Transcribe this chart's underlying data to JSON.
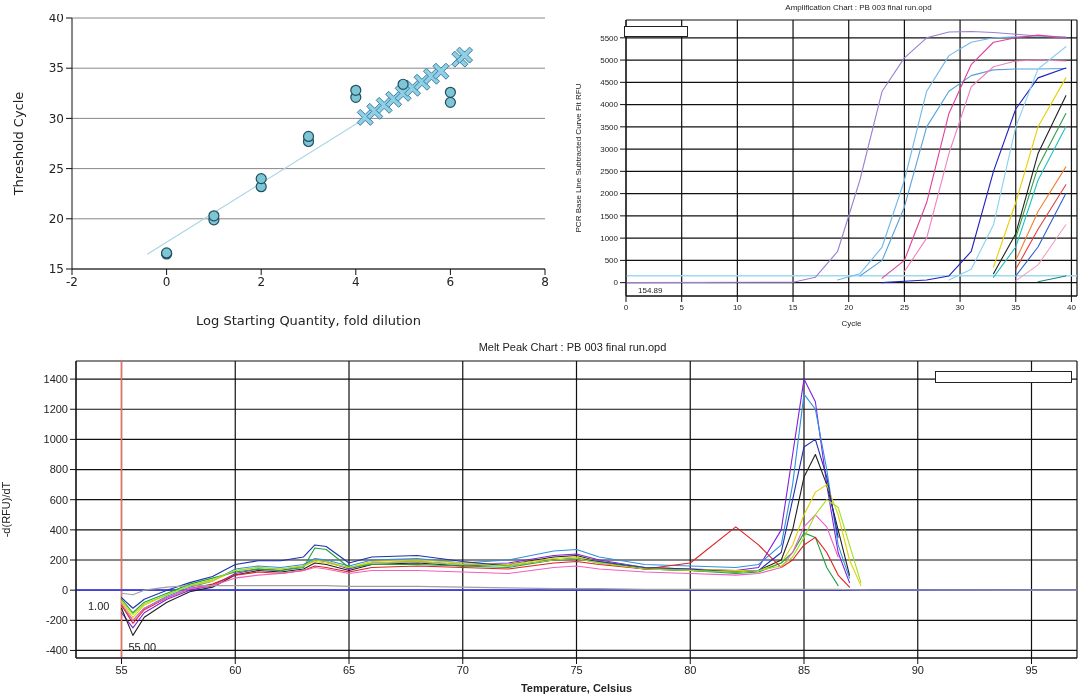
{
  "chart_data": [
    {
      "type": "scatter",
      "xlabel": "Log Starting Quantity, fold dilution",
      "ylabel": "Threshold Cycle",
      "xlim": [
        -2,
        8
      ],
      "xticks": [
        -2,
        0,
        2,
        4,
        6,
        8
      ],
      "ylim": [
        15,
        40
      ],
      "yticks": [
        15,
        20,
        25,
        30,
        35,
        40
      ],
      "grid": "y",
      "series": [
        {
          "type": "line",
          "color": "#a8d4e4",
          "x": [
            -0.4,
            6.3
          ],
          "values": [
            16.5,
            36.2
          ],
          "marker": "none"
        },
        {
          "color": "#8fd0e6",
          "marker": "cross",
          "x": [
            4.2,
            4.4,
            4.6,
            4.8,
            5.0,
            5.2,
            5.4,
            5.6,
            5.8,
            6.2,
            6.3
          ],
          "values": [
            30.1,
            30.7,
            31.3,
            31.9,
            32.5,
            33.0,
            33.6,
            34.2,
            34.7,
            35.9,
            36.3
          ]
        },
        {
          "color": "#7ec6d6",
          "marker": "circle",
          "x": [
            0,
            0,
            1,
            1,
            2,
            2,
            3,
            3,
            4,
            4,
            5,
            6,
            6
          ],
          "values": [
            16.5,
            16.6,
            19.9,
            20.3,
            23.2,
            24.0,
            27.7,
            28.2,
            32.1,
            32.8,
            33.4,
            31.6,
            32.6
          ]
        }
      ]
    },
    {
      "type": "line",
      "title": "Amplification Chart : PB 003 final run.opd",
      "xlabel": "Cycle",
      "ylabel": "PCR Base Line Subtracted Curve Fit RFU",
      "xlim": [
        0,
        40.5
      ],
      "xticks": [
        0,
        5,
        10,
        15,
        20,
        25,
        30,
        35,
        40
      ],
      "ylim": [
        -300,
        5900
      ],
      "yticks": [
        0,
        500,
        1000,
        1500,
        2000,
        2500,
        3000,
        3500,
        4000,
        4500,
        5000,
        5500
      ],
      "grid": true,
      "line_style": "solid",
      "x": [
        0,
        15,
        17,
        19,
        21,
        23,
        25,
        27,
        29,
        31,
        33,
        35,
        37,
        39.5
      ],
      "ref_lines": [
        {
          "axis": "y",
          "value": 154.89,
          "label": "154.89",
          "color": "#a0d8f0"
        }
      ],
      "series": [
        {
          "color": "#9b7fd0",
          "values": [
            0,
            10,
            120,
            700,
            2300,
            4300,
            5050,
            5500,
            5630,
            5640,
            5620,
            5580,
            5540,
            5500
          ]
        },
        {
          "color": "#70b8e8",
          "values": [
            null,
            null,
            null,
            60,
            200,
            800,
            2300,
            4300,
            5100,
            5400,
            5500,
            5520,
            5540,
            5520
          ]
        },
        {
          "color": "#5aa0d8",
          "values": [
            null,
            null,
            null,
            null,
            150,
            500,
            1700,
            3500,
            4300,
            4650,
            4780,
            4800,
            4800,
            4810
          ]
        },
        {
          "color": "#e0409a",
          "values": [
            null,
            null,
            null,
            null,
            null,
            100,
            500,
            1800,
            3800,
            4900,
            5400,
            5500,
            5560,
            5500
          ]
        },
        {
          "color": "#f080c0",
          "values": [
            null,
            null,
            null,
            null,
            null,
            null,
            250,
            1000,
            2900,
            4400,
            4850,
            4980,
            5000,
            4980
          ]
        },
        {
          "color": "#2020c0",
          "values": [
            null,
            null,
            null,
            null,
            null,
            0,
            30,
            60,
            150,
            700,
            2500,
            3900,
            4600,
            4820
          ]
        },
        {
          "color": "#8ad0f0",
          "values": [
            null,
            null,
            null,
            null,
            null,
            null,
            null,
            null,
            60,
            300,
            1300,
            3500,
            4800,
            5300
          ]
        },
        {
          "color": "#e8d000",
          "values": [
            null,
            null,
            null,
            null,
            null,
            null,
            null,
            null,
            null,
            null,
            350,
            1800,
            3500,
            4600
          ]
        },
        {
          "color": "#202020",
          "values": [
            null,
            null,
            null,
            null,
            null,
            null,
            null,
            null,
            null,
            null,
            200,
            1100,
            2900,
            4200
          ]
        },
        {
          "color": "#30a040",
          "values": [
            null,
            null,
            null,
            null,
            null,
            null,
            null,
            null,
            null,
            null,
            null,
            1000,
            2600,
            3800
          ]
        },
        {
          "color": "#20c0c0",
          "values": [
            null,
            null,
            null,
            null,
            null,
            null,
            null,
            null,
            null,
            null,
            120,
            800,
            2300,
            3500
          ]
        },
        {
          "color": "#f08030",
          "values": [
            null,
            null,
            null,
            null,
            null,
            null,
            null,
            null,
            null,
            null,
            null,
            500,
            1600,
            2600
          ]
        },
        {
          "color": "#e04040",
          "values": [
            null,
            null,
            null,
            null,
            null,
            null,
            null,
            null,
            null,
            null,
            null,
            300,
            1200,
            2200
          ]
        },
        {
          "color": "#3060d0",
          "values": [
            null,
            null,
            null,
            null,
            null,
            null,
            null,
            null,
            null,
            null,
            null,
            150,
            800,
            2000
          ]
        },
        {
          "color": "#f0a0c0",
          "values": [
            null,
            null,
            null,
            null,
            null,
            null,
            null,
            null,
            null,
            null,
            null,
            40,
            400,
            1300
          ]
        },
        {
          "color": "#208080",
          "values": [
            null,
            null,
            null,
            null,
            null,
            null,
            null,
            null,
            null,
            null,
            null,
            null,
            20,
            150
          ]
        }
      ]
    },
    {
      "type": "line",
      "title": "Melt Peak Chart : PB 003 final run.opd",
      "xlabel": "Temperature, Celsius",
      "ylabel": "-d(RFU)/dT",
      "xlim": [
        53,
        97
      ],
      "xticks": [
        55,
        60,
        65,
        70,
        75,
        80,
        85,
        90,
        95
      ],
      "ylim": [
        -450,
        1520
      ],
      "yticks": [
        -400,
        -200,
        0,
        200,
        400,
        600,
        800,
        1000,
        1200,
        1400
      ],
      "grid": true,
      "line_style": "solid",
      "x": [
        55,
        55.5,
        56,
        57,
        58,
        59,
        60,
        61,
        62,
        63,
        63.5,
        64,
        65,
        66,
        68,
        70,
        72,
        74,
        75,
        76,
        78,
        80,
        82,
        83,
        84,
        84.5,
        85,
        85.5,
        86,
        86.5,
        87,
        87.5,
        88,
        90,
        95,
        97
      ],
      "ref_lines": [
        {
          "axis": "x",
          "value": 55,
          "label": "55.00",
          "color": "#f07060"
        },
        {
          "axis": "y",
          "value": 1,
          "label": "1.00",
          "color": "#4040ff"
        }
      ],
      "series": [
        {
          "color": "#8020e0",
          "values": [
            -150,
            -250,
            -150,
            -60,
            0,
            30,
            110,
            140,
            130,
            160,
            200,
            190,
            140,
            180,
            190,
            170,
            180,
            230,
            240,
            200,
            150,
            140,
            130,
            150,
            400,
            900,
            1400,
            1250,
            700,
            250,
            50,
            null,
            null,
            null,
            null,
            null
          ]
        },
        {
          "color": "#3090e0",
          "values": [
            -100,
            -200,
            -120,
            -40,
            20,
            60,
            140,
            160,
            150,
            170,
            210,
            200,
            160,
            200,
            210,
            180,
            200,
            260,
            270,
            220,
            170,
            160,
            150,
            170,
            300,
            700,
            1300,
            1200,
            800,
            300,
            80,
            null,
            null,
            null,
            null,
            null
          ]
        },
        {
          "color": "#202020",
          "values": [
            -120,
            -300,
            -180,
            -80,
            -10,
            20,
            100,
            130,
            120,
            140,
            180,
            170,
            130,
            170,
            180,
            160,
            170,
            220,
            230,
            190,
            140,
            130,
            120,
            130,
            200,
            400,
            750,
            900,
            700,
            400,
            100,
            null,
            null,
            null,
            null,
            null
          ]
        },
        {
          "color": "#e0d000",
          "values": [
            -80,
            -180,
            -100,
            -30,
            30,
            60,
            130,
            150,
            140,
            160,
            190,
            180,
            150,
            190,
            200,
            180,
            170,
            210,
            220,
            190,
            150,
            140,
            130,
            130,
            180,
            300,
            500,
            650,
            700,
            500,
            200,
            30,
            null,
            null,
            null,
            null
          ]
        },
        {
          "color": "#20a040",
          "values": [
            -60,
            -150,
            -80,
            -20,
            40,
            80,
            120,
            140,
            130,
            150,
            280,
            270,
            150,
            170,
            170,
            160,
            150,
            200,
            210,
            180,
            140,
            130,
            110,
            120,
            180,
            250,
            380,
            350,
            150,
            30,
            null,
            null,
            null,
            null,
            null,
            null
          ]
        },
        {
          "color": "#e02020",
          "values": [
            -100,
            -220,
            -130,
            -50,
            10,
            40,
            100,
            120,
            110,
            130,
            160,
            150,
            120,
            150,
            160,
            150,
            140,
            180,
            190,
            170,
            140,
            180,
            420,
            300,
            150,
            200,
            300,
            350,
            250,
            100,
            20,
            null,
            null,
            null,
            null,
            null
          ]
        },
        {
          "color": "#2030b0",
          "values": [
            -50,
            -120,
            -60,
            0,
            50,
            90,
            170,
            195,
            195,
            220,
            300,
            290,
            180,
            220,
            230,
            190,
            160,
            200,
            210,
            190,
            150,
            140,
            120,
            130,
            250,
            600,
            950,
            1000,
            750,
            350,
            null,
            null,
            null,
            null,
            null,
            null
          ]
        },
        {
          "color": "#f060c0",
          "values": [
            -90,
            -200,
            -120,
            -50,
            10,
            30,
            80,
            100,
            110,
            130,
            150,
            140,
            110,
            130,
            130,
            120,
            110,
            150,
            160,
            140,
            120,
            110,
            100,
            110,
            150,
            250,
            420,
            500,
            420,
            220,
            null,
            null,
            null,
            null,
            null,
            null
          ]
        },
        {
          "color": "#a0a0a0",
          "values": [
            -20,
            -30,
            0,
            20,
            30,
            30,
            30,
            30,
            30,
            30,
            30,
            30,
            25,
            25,
            25,
            20,
            15,
            10,
            10,
            10,
            5,
            5,
            5,
            5,
            5,
            5,
            5,
            5,
            5,
            5,
            3,
            2,
            1,
            1,
            0,
            0
          ]
        },
        {
          "color": "#a0e020",
          "values": [
            -70,
            -160,
            -90,
            -30,
            30,
            70,
            130,
            150,
            140,
            160,
            200,
            190,
            150,
            180,
            190,
            170,
            160,
            200,
            210,
            180,
            140,
            130,
            120,
            130,
            160,
            220,
            350,
            500,
            600,
            550,
            300,
            50,
            null,
            null,
            null,
            null
          ]
        }
      ]
    }
  ]
}
